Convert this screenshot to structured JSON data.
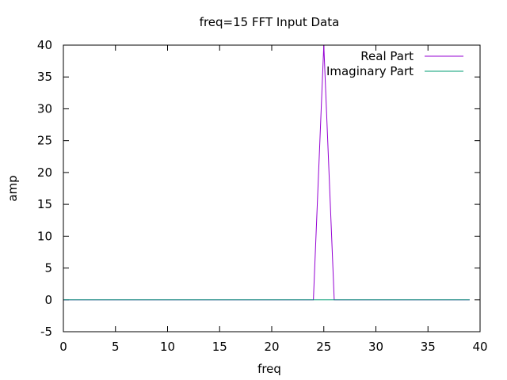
{
  "chart_data": {
    "type": "line",
    "title": "freq=15 FFT Input Data",
    "xlabel": "freq",
    "ylabel": "amp",
    "xlim": [
      0,
      40
    ],
    "ylim": [
      -5,
      40
    ],
    "xticks": [
      0,
      5,
      10,
      15,
      20,
      25,
      30,
      35,
      40
    ],
    "yticks": [
      -5,
      0,
      5,
      10,
      15,
      20,
      25,
      30,
      35,
      40
    ],
    "grid": false,
    "legend_position": "top-right",
    "x": [
      0,
      1,
      2,
      3,
      4,
      5,
      6,
      7,
      8,
      9,
      10,
      11,
      12,
      13,
      14,
      15,
      16,
      17,
      18,
      19,
      20,
      21,
      22,
      23,
      24,
      25,
      26,
      27,
      28,
      29,
      30,
      31,
      32,
      33,
      34,
      35,
      36,
      37,
      38,
      39
    ],
    "series": [
      {
        "name": "Real Part",
        "color": "#9400d3",
        "values": [
          0,
          0,
          0,
          0,
          0,
          0,
          0,
          0,
          0,
          0,
          0,
          0,
          0,
          0,
          0,
          0,
          0,
          0,
          0,
          0,
          0,
          0,
          0,
          0,
          0,
          40,
          0,
          0,
          0,
          0,
          0,
          0,
          0,
          0,
          0,
          0,
          0,
          0,
          0,
          0
        ]
      },
      {
        "name": "Imaginary Part",
        "color": "#009e73",
        "values": [
          0,
          0,
          0,
          0,
          0,
          0,
          0,
          0,
          0,
          0,
          0,
          0,
          0,
          0,
          0,
          0,
          0,
          0,
          0,
          0,
          0,
          0,
          0,
          0,
          0,
          0,
          0,
          0,
          0,
          0,
          0,
          0,
          0,
          0,
          0,
          0,
          0,
          0,
          0,
          0
        ]
      }
    ]
  }
}
